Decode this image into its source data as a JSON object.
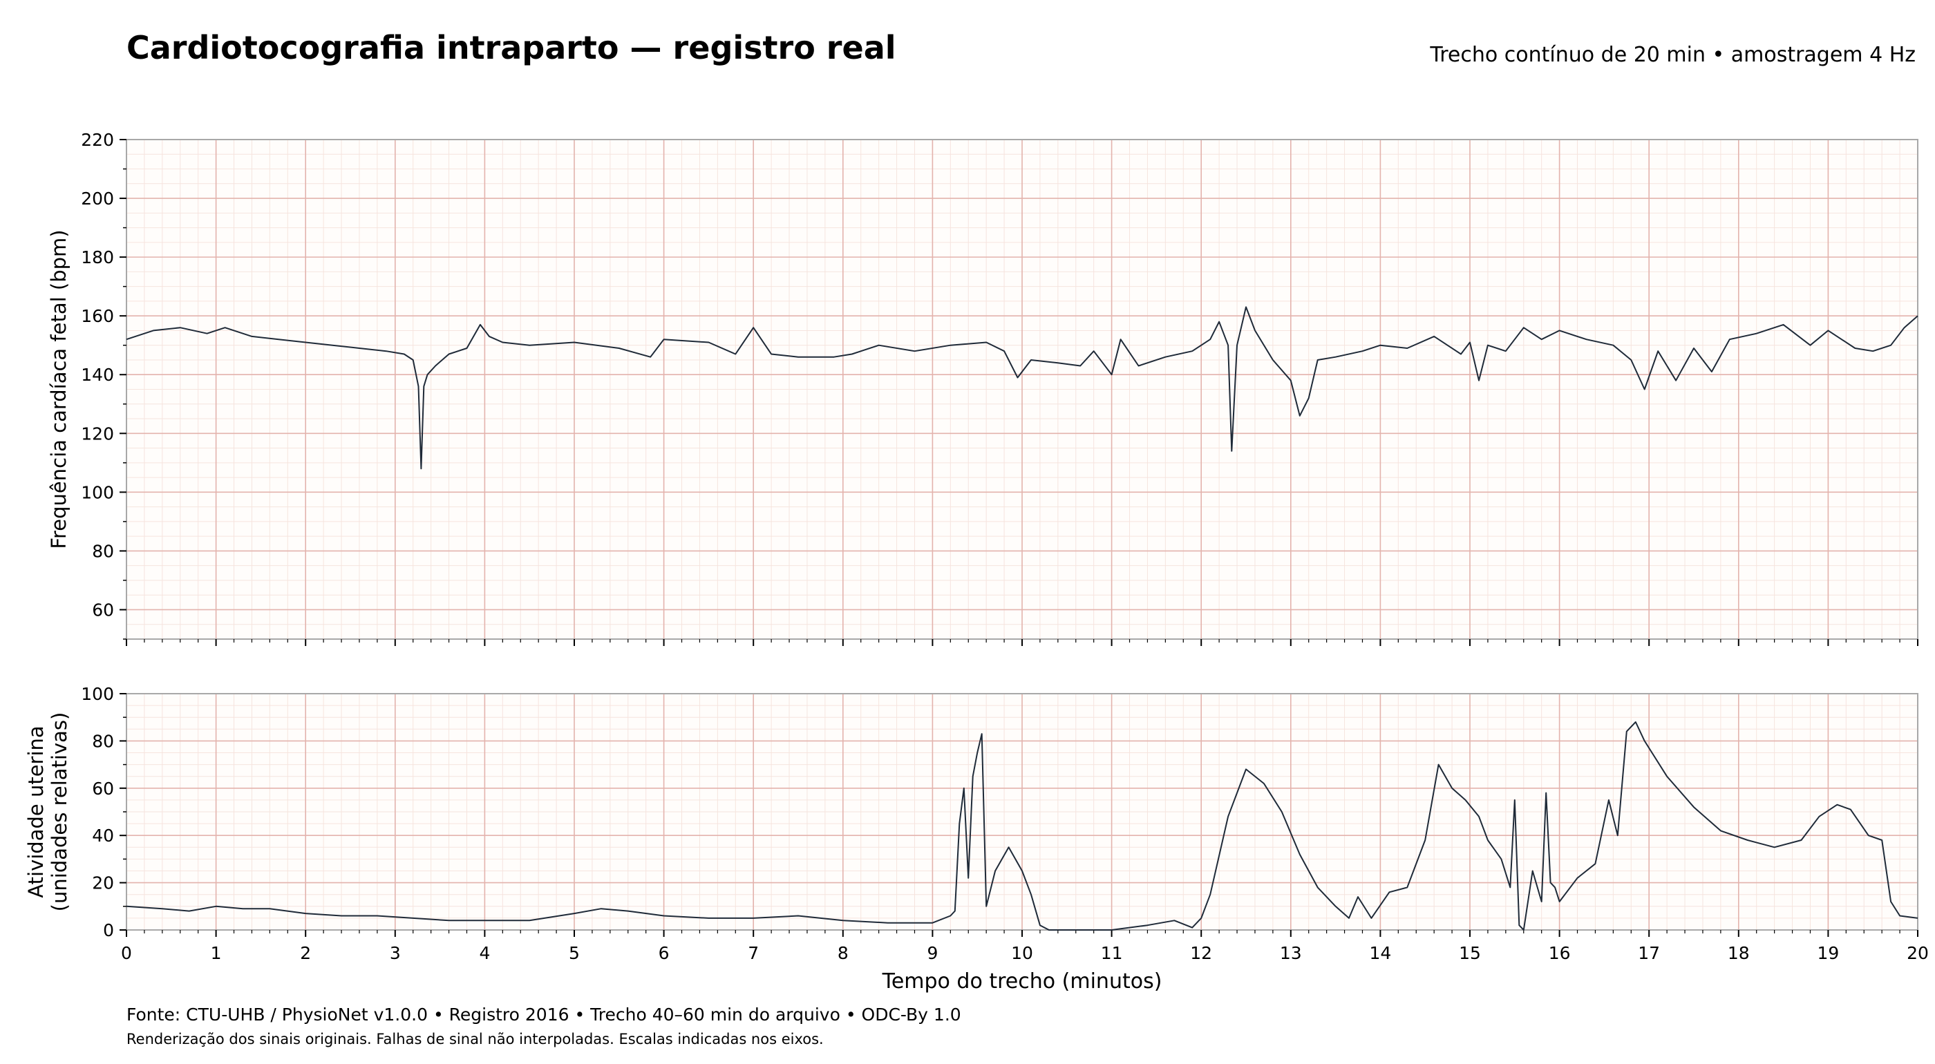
{
  "title": "Cardiotocografia intraparto — registro real",
  "subtitle": "Trecho contínuo de 20 min • amostragem 4 Hz",
  "footer": {
    "source": "Fonte: CTU-UHB / PhysioNet v1.0.0 • Registro 2016 • Trecho 40–60 min do arquivo • ODC-By 1.0",
    "note": "Renderização dos sinais originais. Falhas de sinal não interpoladas. Escalas indicadas nos eixos."
  },
  "colors": {
    "trace": "#1f2a38",
    "grid_major": "#e3b3ad",
    "grid_minor": "#f6e4de",
    "background": "#fffdfb",
    "frame": "#a8a8a8"
  },
  "chart_data": [
    {
      "type": "line",
      "ylabel": "Frequência cardíaca fetal (bpm)",
      "xlim": [
        0,
        20
      ],
      "ylim": [
        50,
        220
      ],
      "yticks": [
        60,
        80,
        100,
        120,
        140,
        160,
        180,
        200,
        220
      ],
      "xticks": [
        0,
        1,
        2,
        3,
        4,
        5,
        6,
        7,
        8,
        9,
        10,
        11,
        12,
        13,
        14,
        15,
        16,
        17,
        18,
        19,
        20
      ],
      "grid": true,
      "series": [
        {
          "x": [
            0,
            0.3,
            0.6,
            0.9,
            1.1,
            1.4,
            1.7,
            2.0,
            2.3,
            2.6,
            2.9,
            3.1,
            3.2,
            3.26,
            3.29,
            3.32,
            3.36,
            3.45,
            3.6,
            3.8,
            3.95,
            4.05,
            4.2,
            4.5,
            5.0,
            5.5,
            5.85,
            6.0,
            6.5,
            6.8,
            7.0,
            7.2,
            7.5,
            7.9,
            8.1,
            8.4,
            8.8,
            9.2,
            9.6,
            9.8,
            9.95,
            10.1,
            10.4,
            10.65,
            10.8,
            11.0,
            11.1,
            11.3,
            11.6,
            11.9,
            12.1,
            12.2,
            12.3,
            12.34,
            12.4,
            12.5,
            12.6,
            12.8,
            13.0,
            13.1,
            13.2,
            13.3,
            13.5,
            13.8,
            14.0,
            14.3,
            14.6,
            14.9,
            15.0,
            15.1,
            15.2,
            15.4,
            15.6,
            15.8,
            16.0,
            16.3,
            16.6,
            16.8,
            16.95,
            17.1,
            17.3,
            17.5,
            17.7,
            17.9,
            18.2,
            18.5,
            18.8,
            19.0,
            19.3,
            19.5,
            19.7,
            19.85,
            20.0
          ],
          "y": [
            152,
            155,
            156,
            154,
            156,
            153,
            152,
            151,
            150,
            149,
            148,
            147,
            145,
            136,
            108,
            136,
            140,
            143,
            147,
            149,
            157,
            153,
            151,
            150,
            151,
            149,
            146,
            152,
            151,
            147,
            156,
            147,
            146,
            146,
            147,
            150,
            148,
            150,
            151,
            148,
            139,
            145,
            144,
            143,
            148,
            140,
            152,
            143,
            146,
            148,
            152,
            158,
            150,
            114,
            150,
            163,
            155,
            145,
            138,
            126,
            132,
            145,
            146,
            148,
            150,
            149,
            153,
            147,
            151,
            138,
            150,
            148,
            156,
            152,
            155,
            152,
            150,
            145,
            135,
            148,
            138,
            149,
            141,
            152,
            154,
            157,
            150,
            155,
            149,
            148,
            150,
            156,
            160
          ]
        }
      ]
    },
    {
      "type": "line",
      "ylabel": "Atividade uterina\n(unidades relativas)",
      "xlabel": "Tempo do trecho (minutos)",
      "xlim": [
        0,
        20
      ],
      "ylim": [
        0,
        100
      ],
      "yticks": [
        0,
        20,
        40,
        60,
        80,
        100
      ],
      "xticks": [
        0,
        1,
        2,
        3,
        4,
        5,
        6,
        7,
        8,
        9,
        10,
        11,
        12,
        13,
        14,
        15,
        16,
        17,
        18,
        19,
        20
      ],
      "grid": true,
      "series": [
        {
          "x": [
            0,
            0.4,
            0.7,
            1.0,
            1.3,
            1.6,
            2.0,
            2.4,
            2.8,
            3.2,
            3.6,
            4.0,
            4.5,
            5.0,
            5.3,
            5.6,
            6.0,
            6.5,
            7.0,
            7.5,
            8.0,
            8.5,
            9.0,
            9.2,
            9.25,
            9.3,
            9.35,
            9.4,
            9.45,
            9.5,
            9.55,
            9.6,
            9.7,
            9.85,
            10.0,
            10.1,
            10.2,
            10.3,
            10.6,
            11.0,
            11.4,
            11.7,
            11.9,
            12.0,
            12.1,
            12.3,
            12.5,
            12.7,
            12.9,
            13.1,
            13.3,
            13.5,
            13.65,
            13.75,
            13.9,
            14.1,
            14.3,
            14.5,
            14.65,
            14.8,
            14.95,
            15.1,
            15.2,
            15.35,
            15.45,
            15.5,
            15.55,
            15.6,
            15.7,
            15.8,
            15.85,
            15.9,
            15.95,
            16.0,
            16.2,
            16.4,
            16.55,
            16.65,
            16.75,
            16.85,
            16.95,
            17.2,
            17.5,
            17.8,
            18.1,
            18.4,
            18.7,
            18.9,
            19.1,
            19.25,
            19.45,
            19.6,
            19.7,
            19.8,
            20.0
          ],
          "y": [
            10,
            9,
            8,
            10,
            9,
            9,
            7,
            6,
            6,
            5,
            4,
            4,
            4,
            7,
            9,
            8,
            6,
            5,
            5,
            6,
            4,
            3,
            3,
            6,
            8,
            45,
            60,
            22,
            65,
            75,
            83,
            10,
            25,
            35,
            25,
            15,
            2,
            0,
            0,
            0,
            2,
            4,
            1,
            5,
            15,
            48,
            68,
            62,
            50,
            32,
            18,
            10,
            5,
            14,
            5,
            16,
            18,
            38,
            70,
            60,
            55,
            48,
            38,
            30,
            18,
            55,
            2,
            0,
            25,
            12,
            58,
            20,
            18,
            12,
            22,
            28,
            55,
            40,
            84,
            88,
            80,
            65,
            52,
            42,
            38,
            35,
            38,
            48,
            53,
            51,
            40,
            38,
            12,
            6,
            5
          ]
        }
      ]
    }
  ]
}
